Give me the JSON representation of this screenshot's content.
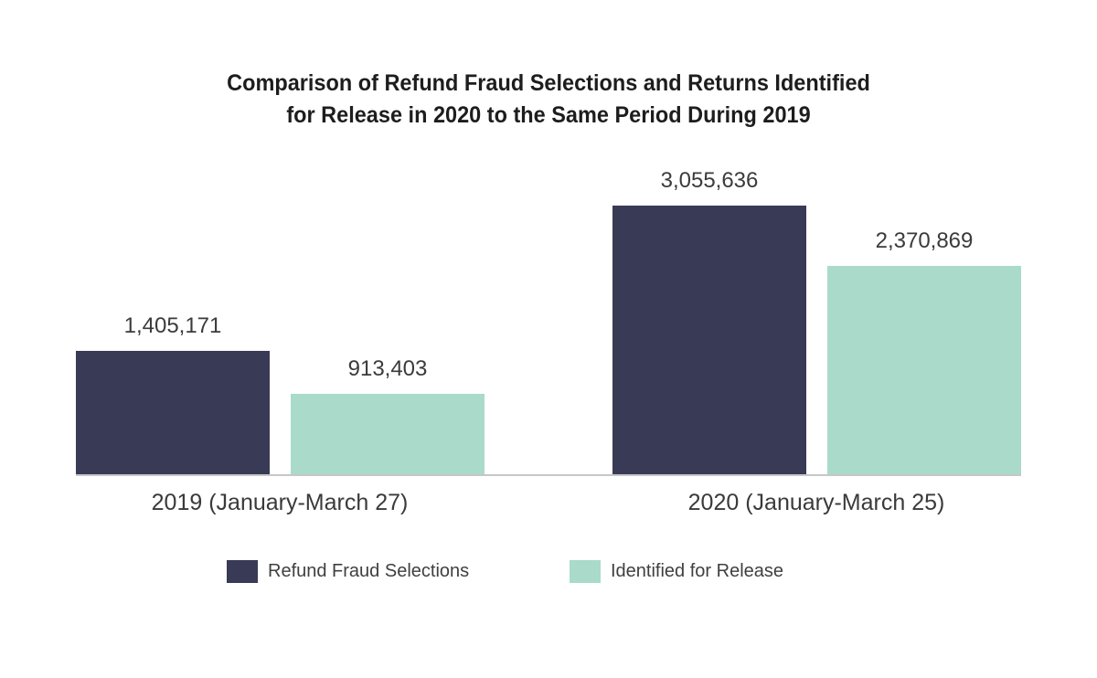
{
  "title": {
    "line1": "Comparison of Refund Fraud Selections and Returns Identified",
    "line2": "for Release in 2020 to the Same Period During 2019"
  },
  "chart_data": {
    "type": "bar",
    "title": "Comparison of Refund Fraud Selections and Returns Identified for Release in 2020 to the Same Period During 2019",
    "categories": [
      "2019 (January-March 27)",
      "2020 (January-March 25)"
    ],
    "series": [
      {
        "name": "Refund Fraud Selections",
        "color": "#383a56",
        "values": [
          1405171,
          3055636
        ],
        "labels": [
          "1,405,171",
          "3,055,636"
        ]
      },
      {
        "name": "Identified for Release",
        "color": "#aadaca",
        "values": [
          913403,
          2370869
        ],
        "labels": [
          "913,403",
          "2,370,869"
        ]
      }
    ],
    "xlabel": "",
    "ylabel": "",
    "ylim": [
      0,
      3055636
    ],
    "grid": false,
    "y_axis_shown": false,
    "legend_position": "bottom",
    "axis_line_color": "#c7c7c7"
  },
  "legend": {
    "items": [
      {
        "label": "Refund Fraud Selections",
        "color": "#383a56"
      },
      {
        "label": "Identified for Release",
        "color": "#aadaca"
      }
    ]
  }
}
